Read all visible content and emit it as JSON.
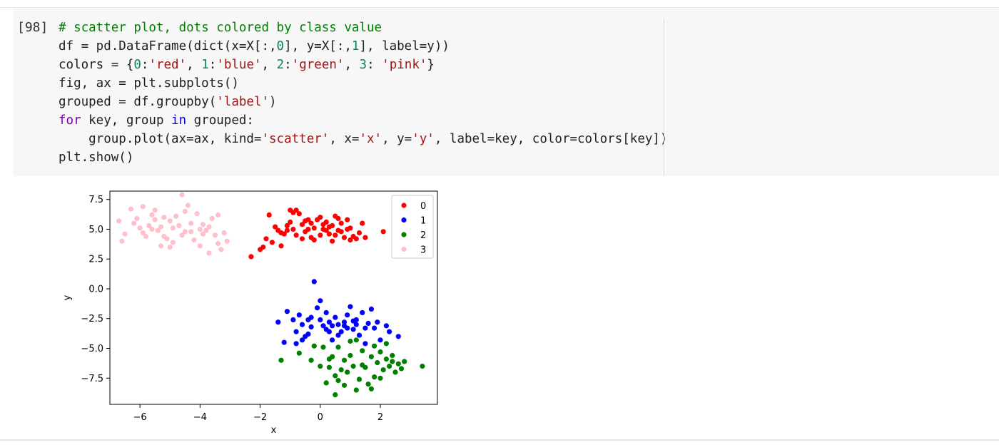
{
  "cell": {
    "prompt": "[98]",
    "code_lines": [
      [
        {
          "t": "# scatter plot, dots colored by class value",
          "c": "comment"
        }
      ],
      [
        {
          "t": "df = pd.DataFrame(dict(x=X[:,",
          "c": ""
        },
        {
          "t": "0",
          "c": "num"
        },
        {
          "t": "], y=X[:,",
          "c": ""
        },
        {
          "t": "1",
          "c": "num"
        },
        {
          "t": "], label=y))",
          "c": ""
        }
      ],
      [
        {
          "t": "colors = {",
          "c": ""
        },
        {
          "t": "0",
          "c": "num"
        },
        {
          "t": ":",
          "c": ""
        },
        {
          "t": "'red'",
          "c": "str"
        },
        {
          "t": ", ",
          "c": ""
        },
        {
          "t": "1",
          "c": "num"
        },
        {
          "t": ":",
          "c": ""
        },
        {
          "t": "'blue'",
          "c": "str"
        },
        {
          "t": ", ",
          "c": ""
        },
        {
          "t": "2",
          "c": "num"
        },
        {
          "t": ":",
          "c": ""
        },
        {
          "t": "'green'",
          "c": "str"
        },
        {
          "t": ", ",
          "c": ""
        },
        {
          "t": "3",
          "c": "num"
        },
        {
          "t": ": ",
          "c": ""
        },
        {
          "t": "'pink'",
          "c": "str"
        },
        {
          "t": "}",
          "c": ""
        }
      ],
      [
        {
          "t": "fig, ax = plt.subplots()",
          "c": ""
        }
      ],
      [
        {
          "t": "grouped = df.groupby(",
          "c": ""
        },
        {
          "t": "'label'",
          "c": "str"
        },
        {
          "t": ")",
          "c": ""
        }
      ],
      [
        {
          "t": "for",
          "c": "kw"
        },
        {
          "t": " key, group ",
          "c": ""
        },
        {
          "t": "in",
          "c": "in"
        },
        {
          "t": " grouped:",
          "c": ""
        }
      ],
      [
        {
          "t": "    group.plot(ax=ax, kind=",
          "c": ""
        },
        {
          "t": "'scatter'",
          "c": "str"
        },
        {
          "t": ", x=",
          "c": ""
        },
        {
          "t": "'x'",
          "c": "str"
        },
        {
          "t": ", y=",
          "c": ""
        },
        {
          "t": "'y'",
          "c": "str"
        },
        {
          "t": ", label=key, color=colors[key])",
          "c": ""
        }
      ],
      [
        {
          "t": "plt.show()",
          "c": ""
        }
      ]
    ]
  },
  "chart_data": {
    "type": "scatter",
    "title": "",
    "xlabel": "x",
    "ylabel": "y",
    "xlim": [
      -7.0,
      3.9
    ],
    "ylim": [
      -9.7,
      8.2
    ],
    "xticks": [
      -6,
      -4,
      -2,
      0,
      2
    ],
    "xtick_labels": [
      "−6",
      "−4",
      "−2",
      "0",
      "2"
    ],
    "yticks": [
      7.5,
      5.0,
      2.5,
      0.0,
      -2.5,
      -5.0,
      -7.5
    ],
    "ytick_labels": [
      "7.5",
      "5.0",
      "2.5",
      "0.0",
      "−2.5",
      "−5.0",
      "−7.5"
    ],
    "legend_position": "top-right",
    "series": [
      {
        "name": "0",
        "color": "#ff0000",
        "points": [
          [
            -2.3,
            2.7
          ],
          [
            -2.0,
            3.3
          ],
          [
            -1.9,
            3.5
          ],
          [
            -1.8,
            4.2
          ],
          [
            -1.6,
            3.9
          ],
          [
            -1.3,
            3.6
          ],
          [
            -1.2,
            4.6
          ],
          [
            -1.1,
            5.3
          ],
          [
            -1.0,
            6.6
          ],
          [
            -0.9,
            6.4
          ],
          [
            -0.8,
            6.6
          ],
          [
            -0.7,
            6.3
          ],
          [
            -0.6,
            5.4
          ],
          [
            -0.5,
            4.8
          ],
          [
            -0.4,
            5.8
          ],
          [
            -0.3,
            4.3
          ],
          [
            -0.2,
            5.1
          ],
          [
            -0.1,
            5.8
          ],
          [
            0.0,
            6.0
          ],
          [
            0.1,
            5.0
          ],
          [
            0.2,
            5.6
          ],
          [
            0.3,
            4.6
          ],
          [
            0.4,
            5.3
          ],
          [
            0.5,
            6.1
          ],
          [
            0.6,
            4.9
          ],
          [
            0.7,
            5.5
          ],
          [
            0.8,
            4.3
          ],
          [
            0.9,
            5.8
          ],
          [
            1.0,
            5.1
          ],
          [
            1.1,
            4.4
          ],
          [
            1.2,
            4.2
          ],
          [
            1.4,
            5.5
          ],
          [
            1.5,
            4.3
          ],
          [
            -1.5,
            5.2
          ],
          [
            -1.3,
            4.7
          ],
          [
            -0.9,
            5.0
          ],
          [
            -0.6,
            4.2
          ],
          [
            -0.3,
            5.5
          ],
          [
            0.0,
            4.5
          ],
          [
            0.2,
            4.9
          ],
          [
            0.4,
            4.0
          ],
          [
            0.6,
            5.9
          ],
          [
            -1.7,
            6.2
          ],
          [
            -1.4,
            4.9
          ],
          [
            -0.8,
            4.5
          ],
          [
            -0.2,
            4.1
          ],
          [
            0.3,
            5.2
          ],
          [
            0.7,
            4.8
          ],
          [
            1.3,
            4.7
          ],
          [
            2.1,
            4.8
          ],
          [
            -1.0,
            5.6
          ],
          [
            -0.4,
            5.0
          ],
          [
            0.1,
            5.4
          ],
          [
            0.5,
            4.5
          ],
          [
            -1.1,
            4.9
          ],
          [
            -0.5,
            5.7
          ],
          [
            0.9,
            5.0
          ],
          [
            1.0,
            4.1
          ]
        ]
      },
      {
        "name": "1",
        "color": "#0000ff",
        "points": [
          [
            -1.2,
            -4.5
          ],
          [
            -1.1,
            -1.9
          ],
          [
            -0.9,
            -2.6
          ],
          [
            -0.8,
            -3.6
          ],
          [
            -0.7,
            -2.2
          ],
          [
            -0.6,
            -3.0
          ],
          [
            -0.5,
            -4.0
          ],
          [
            -0.4,
            -2.6
          ],
          [
            -0.3,
            -3.2
          ],
          [
            -0.2,
            0.6
          ],
          [
            -0.1,
            -1.6
          ],
          [
            0.0,
            -2.6
          ],
          [
            0.1,
            -3.1
          ],
          [
            0.2,
            -2.0
          ],
          [
            0.3,
            -3.6
          ],
          [
            0.4,
            -4.3
          ],
          [
            0.5,
            -2.4
          ],
          [
            0.6,
            -3.0
          ],
          [
            0.7,
            -3.6
          ],
          [
            0.8,
            -2.8
          ],
          [
            0.9,
            -2.2
          ],
          [
            1.0,
            -1.5
          ],
          [
            1.1,
            -3.4
          ],
          [
            1.2,
            -2.6
          ],
          [
            1.3,
            -3.9
          ],
          [
            1.4,
            -2.0
          ],
          [
            1.5,
            -4.6
          ],
          [
            1.6,
            -2.9
          ],
          [
            1.7,
            -1.7
          ],
          [
            1.8,
            -3.3
          ],
          [
            1.9,
            -2.8
          ],
          [
            2.0,
            -4.3
          ],
          [
            2.2,
            -3.1
          ],
          [
            2.3,
            -3.6
          ],
          [
            2.6,
            -4.0
          ],
          [
            -1.4,
            -2.8
          ],
          [
            -0.8,
            -4.6
          ],
          [
            -0.4,
            -3.8
          ],
          [
            0.0,
            -1.0
          ],
          [
            0.3,
            -2.8
          ],
          [
            0.6,
            -3.9
          ],
          [
            0.9,
            -3.3
          ],
          [
            1.2,
            -3.0
          ],
          [
            1.5,
            -3.3
          ],
          [
            -0.6,
            -4.3
          ],
          [
            0.2,
            -3.4
          ],
          [
            0.8,
            -3.1
          ],
          [
            1.1,
            -2.7
          ],
          [
            -0.3,
            -2.4
          ],
          [
            0.4,
            -3.1
          ]
        ]
      },
      {
        "name": "2",
        "color": "#008000",
        "points": [
          [
            -1.3,
            -6.0
          ],
          [
            -0.7,
            -5.4
          ],
          [
            -0.3,
            -6.0
          ],
          [
            -0.2,
            -4.8
          ],
          [
            0.0,
            -6.5
          ],
          [
            0.1,
            -4.9
          ],
          [
            0.2,
            -7.9
          ],
          [
            0.3,
            -6.6
          ],
          [
            0.4,
            -5.7
          ],
          [
            0.5,
            -7.3
          ],
          [
            0.6,
            -4.9
          ],
          [
            0.7,
            -6.8
          ],
          [
            0.8,
            -8.1
          ],
          [
            0.9,
            -7.0
          ],
          [
            1.0,
            -5.6
          ],
          [
            1.1,
            -6.5
          ],
          [
            1.2,
            -4.3
          ],
          [
            1.3,
            -7.6
          ],
          [
            1.4,
            -5.2
          ],
          [
            1.5,
            -6.6
          ],
          [
            1.6,
            -8.0
          ],
          [
            1.7,
            -5.7
          ],
          [
            1.8,
            -7.4
          ],
          [
            1.9,
            -6.2
          ],
          [
            2.0,
            -5.3
          ],
          [
            2.1,
            -6.8
          ],
          [
            2.2,
            -5.9
          ],
          [
            2.3,
            -6.5
          ],
          [
            2.4,
            -5.6
          ],
          [
            2.5,
            -7.0
          ],
          [
            2.6,
            -6.3
          ],
          [
            2.7,
            -6.7
          ],
          [
            2.8,
            -6.1
          ],
          [
            3.4,
            -6.5
          ],
          [
            0.5,
            -8.9
          ],
          [
            1.0,
            -4.4
          ],
          [
            1.8,
            -4.8
          ],
          [
            2.2,
            -4.6
          ],
          [
            0.3,
            -5.9
          ],
          [
            0.8,
            -6.0
          ],
          [
            1.4,
            -6.4
          ],
          [
            2.0,
            -7.5
          ],
          [
            2.4,
            -6.1
          ],
          [
            0.6,
            -7.7
          ],
          [
            1.2,
            -8.5
          ],
          [
            1.7,
            -8.4
          ]
        ]
      },
      {
        "name": "3",
        "color": "#ffc0cb",
        "points": [
          [
            -6.7,
            5.7
          ],
          [
            -6.6,
            4.0
          ],
          [
            -6.5,
            4.6
          ],
          [
            -6.3,
            6.7
          ],
          [
            -6.2,
            5.5
          ],
          [
            -6.0,
            5.1
          ],
          [
            -5.9,
            6.9
          ],
          [
            -5.8,
            4.4
          ],
          [
            -5.7,
            5.3
          ],
          [
            -5.6,
            6.2
          ],
          [
            -5.5,
            6.6
          ],
          [
            -5.4,
            4.9
          ],
          [
            -5.3,
            3.6
          ],
          [
            -5.2,
            6.0
          ],
          [
            -5.1,
            4.2
          ],
          [
            -5.0,
            5.7
          ],
          [
            -4.9,
            3.9
          ],
          [
            -4.8,
            6.1
          ],
          [
            -4.7,
            5.3
          ],
          [
            -4.6,
            7.9
          ],
          [
            -4.5,
            4.8
          ],
          [
            -4.4,
            7.0
          ],
          [
            -4.3,
            5.5
          ],
          [
            -4.2,
            4.1
          ],
          [
            -4.1,
            6.3
          ],
          [
            -4.0,
            3.6
          ],
          [
            -3.9,
            5.4
          ],
          [
            -3.8,
            4.9
          ],
          [
            -3.7,
            3.0
          ],
          [
            -3.6,
            5.9
          ],
          [
            -3.5,
            4.5
          ],
          [
            -3.4,
            6.2
          ],
          [
            -3.3,
            3.3
          ],
          [
            -3.2,
            4.7
          ],
          [
            -3.1,
            4.0
          ],
          [
            -5.9,
            4.7
          ],
          [
            -5.6,
            5.0
          ],
          [
            -5.2,
            4.4
          ],
          [
            -4.9,
            5.1
          ],
          [
            -4.6,
            4.5
          ],
          [
            -4.3,
            4.8
          ],
          [
            -4.0,
            5.0
          ],
          [
            -3.7,
            5.2
          ],
          [
            -5.5,
            5.8
          ],
          [
            -5.0,
            3.5
          ],
          [
            -4.5,
            6.5
          ],
          [
            -3.9,
            4.6
          ],
          [
            -3.4,
            3.8
          ],
          [
            -6.1,
            5.9
          ],
          [
            -5.3,
            5.2
          ]
        ]
      }
    ]
  }
}
